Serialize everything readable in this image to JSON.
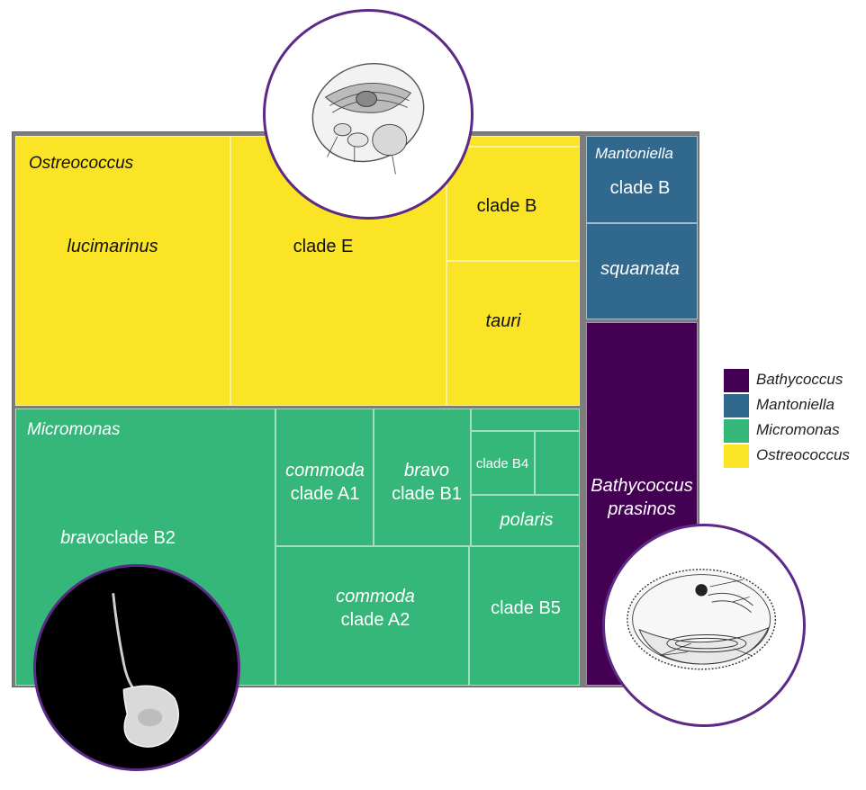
{
  "chart_data": {
    "type": "treemap",
    "colors": {
      "Ostreococcus": "#fbe425",
      "Micromonas": "#35b779",
      "Mantoniella": "#31688e",
      "Bathycoccus": "#440154"
    },
    "legend": {
      "position": "right",
      "entries": [
        "Bathycoccus",
        "Mantoniella",
        "Micromonas",
        "Ostreococcus"
      ]
    },
    "groups": [
      {
        "name": "Ostreococcus",
        "label": "Ostreococcus",
        "color": "#fbe425",
        "text_color": "#111111",
        "leaves": [
          {
            "key": "lucimarinus",
            "parts": [
              {
                "t": "lucimarinus",
                "i": true
              }
            ]
          },
          {
            "key": "clade-E",
            "parts": [
              {
                "t": "clade E",
                "i": false
              }
            ]
          },
          {
            "key": "clade-B",
            "parts": [
              {
                "t": "clade B",
                "i": false
              }
            ]
          },
          {
            "key": "tauri",
            "parts": [
              {
                "t": "tauri",
                "i": true
              }
            ]
          },
          {
            "key": "thin",
            "parts": []
          }
        ]
      },
      {
        "name": "Micromonas",
        "label": "Micromonas",
        "color": "#35b779",
        "text_color": "#ffffff",
        "leaves": [
          {
            "key": "bravo-clade-B2",
            "parts": [
              {
                "t": "bravo",
                "i": true
              },
              {
                "t": "clade B2",
                "i": false
              }
            ]
          },
          {
            "key": "commoda-clade-A1",
            "parts": [
              {
                "t": "commoda",
                "i": true
              },
              {
                "t": "clade A1",
                "i": false,
                "br": true
              }
            ]
          },
          {
            "key": "bravo-clade-B1",
            "parts": [
              {
                "t": "bravo",
                "i": true
              },
              {
                "t": "clade B1",
                "i": false,
                "br": true
              }
            ]
          },
          {
            "key": "clade-B4",
            "parts": [
              {
                "t": "clade B4",
                "i": false
              }
            ]
          },
          {
            "key": "unlabeled",
            "parts": []
          },
          {
            "key": "thin",
            "parts": []
          },
          {
            "key": "polaris",
            "parts": [
              {
                "t": "polaris",
                "i": true
              }
            ]
          },
          {
            "key": "commoda-clade-A2",
            "parts": [
              {
                "t": "commoda",
                "i": true
              },
              {
                "t": "clade A2",
                "i": false,
                "br": true
              }
            ]
          },
          {
            "key": "clade-B5",
            "parts": [
              {
                "t": "clade B5",
                "i": false
              }
            ]
          }
        ]
      },
      {
        "name": "Mantoniella",
        "label": "Mantoniella",
        "color": "#31688e",
        "text_color": "#ffffff",
        "leaves": [
          {
            "key": "clade-B",
            "parts": [
              {
                "t": "clade B",
                "i": false
              }
            ]
          },
          {
            "key": "squamata",
            "parts": [
              {
                "t": "squamata",
                "i": true
              }
            ]
          }
        ]
      },
      {
        "name": "Bathycoccus",
        "label": "",
        "color": "#440154",
        "text_color": "#ffffff",
        "leaves": [
          {
            "key": "prasinos",
            "parts": [
              {
                "t": "Bathycoccus",
                "i": true
              },
              {
                "t": "prasinos",
                "i": true,
                "br": true
              }
            ]
          }
        ]
      }
    ]
  }
}
